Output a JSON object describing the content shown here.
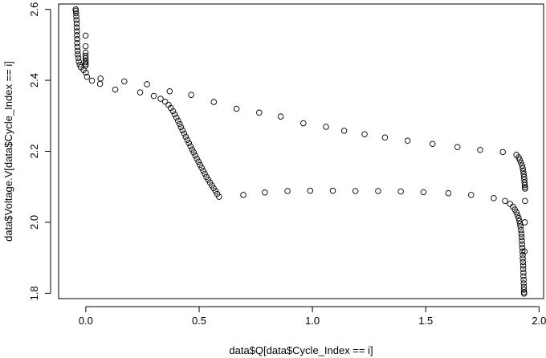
{
  "chart_data": {
    "type": "scatter",
    "title": "",
    "xlabel": "data$Q[data$Cycle_Index == i]",
    "ylabel": "data$Voltage.V[data$Cycle_Index == i]",
    "xlim": [
      -0.12,
      2.02
    ],
    "ylim": [
      1.785,
      2.615
    ],
    "xticks": [
      0.0,
      0.5,
      1.0,
      1.5,
      2.0
    ],
    "xtick_labels": [
      "0.0",
      "0.5",
      "1.0",
      "1.5",
      "2.0"
    ],
    "yticks": [
      1.8,
      2.0,
      2.2,
      2.4,
      2.6
    ],
    "ytick_labels": [
      "1.8",
      "2.0",
      "2.2",
      "2.4",
      "2.6"
    ],
    "grid": false,
    "box": true,
    "marker": "open-circle",
    "points": [
      [
        -0.045,
        2.6
      ],
      [
        -0.044,
        2.596
      ],
      [
        -0.043,
        2.589
      ],
      [
        -0.042,
        2.58
      ],
      [
        -0.041,
        2.57
      ],
      [
        -0.04,
        2.56
      ],
      [
        -0.04,
        2.549
      ],
      [
        -0.039,
        2.538
      ],
      [
        -0.039,
        2.527
      ],
      [
        -0.038,
        2.516
      ],
      [
        -0.038,
        2.505
      ],
      [
        -0.037,
        2.494
      ],
      [
        -0.036,
        2.483
      ],
      [
        -0.035,
        2.473
      ],
      [
        -0.033,
        2.463
      ],
      [
        -0.031,
        2.453
      ],
      [
        -0.027,
        2.444
      ],
      [
        -0.022,
        2.437
      ],
      [
        -0.01,
        2.429
      ],
      [
        0.005,
        2.41
      ],
      [
        0.027,
        2.399
      ],
      [
        0.063,
        2.39
      ],
      [
        -0.001,
        2.526
      ],
      [
        -0.001,
        2.496
      ],
      [
        -0.001,
        2.478
      ],
      [
        -0.001,
        2.469
      ],
      [
        -0.001,
        2.462
      ],
      [
        -0.001,
        2.456
      ],
      [
        -0.001,
        2.451
      ],
      [
        -0.001,
        2.446
      ],
      [
        -0.001,
        2.441
      ],
      [
        0.0,
        2.422
      ],
      [
        0.065,
        2.405
      ],
      [
        0.17,
        2.397
      ],
      [
        0.27,
        2.389
      ],
      [
        0.37,
        2.369
      ],
      [
        0.465,
        2.359
      ],
      [
        0.565,
        2.339
      ],
      [
        0.665,
        2.32
      ],
      [
        0.765,
        2.309
      ],
      [
        0.86,
        2.298
      ],
      [
        0.96,
        2.279
      ],
      [
        1.06,
        2.269
      ],
      [
        1.14,
        2.258
      ],
      [
        1.23,
        2.248
      ],
      [
        1.32,
        2.239
      ],
      [
        1.42,
        2.23
      ],
      [
        1.53,
        2.221
      ],
      [
        1.64,
        2.212
      ],
      [
        1.74,
        2.204
      ],
      [
        1.84,
        2.198
      ],
      [
        1.9,
        2.19
      ],
      [
        1.91,
        2.183
      ],
      [
        1.915,
        2.176
      ],
      [
        1.92,
        2.168
      ],
      [
        1.925,
        2.16
      ],
      [
        1.928,
        2.152
      ],
      [
        1.93,
        2.144
      ],
      [
        1.932,
        2.136
      ],
      [
        1.934,
        2.128
      ],
      [
        1.935,
        2.12
      ],
      [
        1.936,
        2.112
      ],
      [
        1.937,
        2.105
      ],
      [
        1.938,
        2.099
      ],
      [
        1.938,
        2.095
      ],
      [
        0.13,
        2.374
      ],
      [
        0.24,
        2.366
      ],
      [
        0.3,
        2.356
      ],
      [
        0.33,
        2.348
      ],
      [
        0.35,
        2.34
      ],
      [
        0.365,
        2.331
      ],
      [
        0.375,
        2.322
      ],
      [
        0.385,
        2.313
      ],
      [
        0.392,
        2.304
      ],
      [
        0.4,
        2.295
      ],
      [
        0.407,
        2.286
      ],
      [
        0.414,
        2.277
      ],
      [
        0.42,
        2.268
      ],
      [
        0.427,
        2.259
      ],
      [
        0.434,
        2.25
      ],
      [
        0.441,
        2.241
      ],
      [
        0.448,
        2.232
      ],
      [
        0.455,
        2.223
      ],
      [
        0.462,
        2.214
      ],
      [
        0.469,
        2.205
      ],
      [
        0.476,
        2.197
      ],
      [
        0.483,
        2.188
      ],
      [
        0.49,
        2.179
      ],
      [
        0.497,
        2.171
      ],
      [
        0.504,
        2.162
      ],
      [
        0.511,
        2.154
      ],
      [
        0.518,
        2.145
      ],
      [
        0.525,
        2.137
      ],
      [
        0.532,
        2.128
      ],
      [
        0.54,
        2.12
      ],
      [
        0.548,
        2.112
      ],
      [
        0.556,
        2.104
      ],
      [
        0.564,
        2.096
      ],
      [
        0.572,
        2.088
      ],
      [
        0.58,
        2.08
      ],
      [
        0.588,
        2.072
      ],
      [
        0.695,
        2.077
      ],
      [
        0.79,
        2.084
      ],
      [
        0.89,
        2.088
      ],
      [
        0.99,
        2.089
      ],
      [
        1.09,
        2.089
      ],
      [
        1.19,
        2.088
      ],
      [
        1.29,
        2.088
      ],
      [
        1.39,
        2.087
      ],
      [
        1.49,
        2.085
      ],
      [
        1.6,
        2.082
      ],
      [
        1.7,
        2.077
      ],
      [
        1.8,
        2.068
      ],
      [
        1.85,
        2.06
      ],
      [
        1.872,
        2.052
      ],
      [
        1.885,
        2.044
      ],
      [
        1.893,
        2.036
      ],
      [
        1.9,
        2.028
      ],
      [
        1.905,
        2.02
      ],
      [
        1.91,
        2.012
      ],
      [
        1.913,
        2.004
      ],
      [
        1.916,
        1.996
      ],
      [
        1.918,
        1.988
      ],
      [
        1.92,
        1.978
      ],
      [
        1.922,
        1.968
      ],
      [
        1.923,
        1.958
      ],
      [
        1.924,
        1.948
      ],
      [
        1.925,
        1.938
      ],
      [
        1.926,
        1.928
      ],
      [
        1.927,
        1.918
      ],
      [
        1.928,
        1.908
      ],
      [
        1.928,
        1.898
      ],
      [
        1.929,
        1.888
      ],
      [
        1.93,
        1.878
      ],
      [
        1.93,
        1.868
      ],
      [
        1.931,
        1.858
      ],
      [
        1.931,
        1.848
      ],
      [
        1.932,
        1.838
      ],
      [
        1.932,
        1.828
      ],
      [
        1.933,
        1.818
      ],
      [
        1.933,
        1.81
      ],
      [
        1.934,
        1.803
      ],
      [
        1.934,
        1.799
      ],
      [
        1.938,
        2.06
      ],
      [
        1.937,
        2.0
      ],
      [
        1.936,
        1.918
      ]
    ]
  }
}
